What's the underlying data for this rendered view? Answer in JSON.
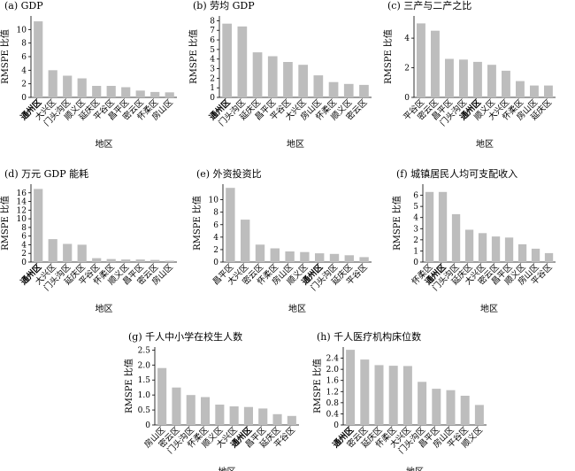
{
  "chart_data": [
    {
      "type": "bar",
      "title": "(a) GDP",
      "xlabel": "地区",
      "ylabel": "RMSPE 比值",
      "ylim": [
        0,
        12
      ],
      "yticks": [
        0,
        2,
        4,
        6,
        8,
        10
      ],
      "categories": [
        "通州区",
        "大兴区",
        "门头沟区",
        "顺义区",
        "延庆区",
        "平谷区",
        "昌平区",
        "密云区",
        "怀柔区",
        "房山区"
      ],
      "values": [
        11.2,
        4.0,
        3.2,
        2.8,
        1.7,
        1.7,
        1.5,
        1.0,
        0.8,
        0.75
      ],
      "highlight": "通州区"
    },
    {
      "type": "bar",
      "title": "(b) 劳均 GDP",
      "xlabel": "地区",
      "ylabel": "RMSPE 比值",
      "ylim": [
        0,
        8.5
      ],
      "yticks": [
        0,
        1,
        2,
        3,
        4,
        5,
        6,
        7,
        8
      ],
      "categories": [
        "通州区",
        "门头沟区",
        "延庆区",
        "昌平区",
        "平谷区",
        "大兴区",
        "房山区",
        "怀柔区",
        "顺义区",
        "密云区"
      ],
      "values": [
        7.7,
        7.4,
        4.7,
        4.3,
        3.7,
        3.4,
        2.3,
        1.6,
        1.4,
        1.3
      ],
      "highlight": "通州区"
    },
    {
      "type": "bar",
      "title": "(c) 三产与二产之比",
      "xlabel": "地区",
      "ylabel": "RMSPE 比值",
      "ylim": [
        0,
        5.5
      ],
      "yticks": [
        0,
        2,
        4
      ],
      "categories": [
        "平谷区",
        "密云区",
        "昌平区",
        "门头沟区",
        "通州区",
        "顺义区",
        "大兴区",
        "怀柔区",
        "房山区",
        "延庆区"
      ],
      "values": [
        5.0,
        4.5,
        2.6,
        2.55,
        2.4,
        2.2,
        1.8,
        1.1,
        0.8,
        0.8
      ],
      "highlight": "通州区"
    },
    {
      "type": "bar",
      "title": "(d) 万元 GDP 能耗",
      "xlabel": "地区",
      "ylabel": "RMSPE 比值",
      "ylim": [
        0,
        18
      ],
      "yticks": [
        0,
        2,
        4,
        6,
        8,
        10,
        12,
        14,
        16
      ],
      "categories": [
        "通州区",
        "大兴区",
        "门头沟区",
        "延庆区",
        "平谷区",
        "怀柔区",
        "顺义区",
        "昌平区",
        "密云区",
        "房山区"
      ],
      "values": [
        16.9,
        5.3,
        4.2,
        4.0,
        0.9,
        0.7,
        0.6,
        0.6,
        0.5,
        0.3
      ],
      "highlight": "通州区"
    },
    {
      "type": "bar",
      "title": "(e) 外资投资比",
      "xlabel": "地区",
      "ylabel": "RMSPE 比值",
      "ylim": [
        0,
        12.5
      ],
      "yticks": [
        0,
        2,
        4,
        6,
        8,
        10
      ],
      "categories": [
        "昌平区",
        "大兴区",
        "密云区",
        "怀柔区",
        "房山区",
        "顺义区",
        "通州区",
        "门头沟区",
        "延庆区",
        "平谷区"
      ],
      "values": [
        11.9,
        6.8,
        2.8,
        2.2,
        1.7,
        1.6,
        1.4,
        1.3,
        1.1,
        0.8
      ],
      "highlight": "通州区"
    },
    {
      "type": "bar",
      "title": "(f) 城镇居民人均可支配收入",
      "xlabel": "地区",
      "ylabel": "RMSPE 比值",
      "ylim": [
        0,
        7
      ],
      "yticks": [
        0,
        1,
        2,
        3,
        4,
        5,
        6
      ],
      "categories": [
        "怀柔区",
        "通州区",
        "门头沟区",
        "延庆区",
        "大兴区",
        "密云区",
        "昌平区",
        "顺义区",
        "房山区",
        "平谷区"
      ],
      "values": [
        6.3,
        6.3,
        4.3,
        2.9,
        2.6,
        2.3,
        2.2,
        1.6,
        1.2,
        0.8
      ],
      "highlight": "通州区"
    },
    {
      "type": "bar",
      "title": "(g) 千人中小学在校生人数",
      "xlabel": "地区",
      "ylabel": "RMSPE 比值",
      "ylim": [
        0,
        2.6
      ],
      "yticks": [
        0,
        0.5,
        1.0,
        1.5,
        2.0,
        2.5
      ],
      "ytick_labels": [
        "0",
        "0.5",
        "1.0",
        "1.5",
        "2.0",
        "2.5"
      ],
      "categories": [
        "房山区",
        "密云区",
        "门头沟区",
        "怀柔区",
        "顺义区",
        "大兴区",
        "通州区",
        "昌平区",
        "延庆区",
        "平谷区"
      ],
      "values": [
        1.9,
        1.25,
        1.0,
        0.93,
        0.68,
        0.62,
        0.6,
        0.55,
        0.36,
        0.3
      ],
      "highlight": "通州区"
    },
    {
      "type": "bar",
      "title": "(h) 千人医疗机构床位数",
      "xlabel": "地区",
      "ylabel": "RMSPE 比值",
      "ylim": [
        0,
        2.8
      ],
      "yticks": [
        0,
        0.4,
        0.8,
        1.2,
        1.6,
        2.0,
        2.4
      ],
      "ytick_labels": [
        "0",
        "0.4",
        "0.8",
        "1.2",
        "1.6",
        "2.0",
        "2.4"
      ],
      "categories": [
        "通州区",
        "密云区",
        "延庆区",
        "怀柔区",
        "大兴区",
        "门头沟区",
        "昌平区",
        "房山区",
        "平谷区",
        "顺义区"
      ],
      "values": [
        2.7,
        2.35,
        2.15,
        2.13,
        2.12,
        1.55,
        1.3,
        1.25,
        1.05,
        0.72
      ],
      "highlight": "通州区"
    }
  ]
}
